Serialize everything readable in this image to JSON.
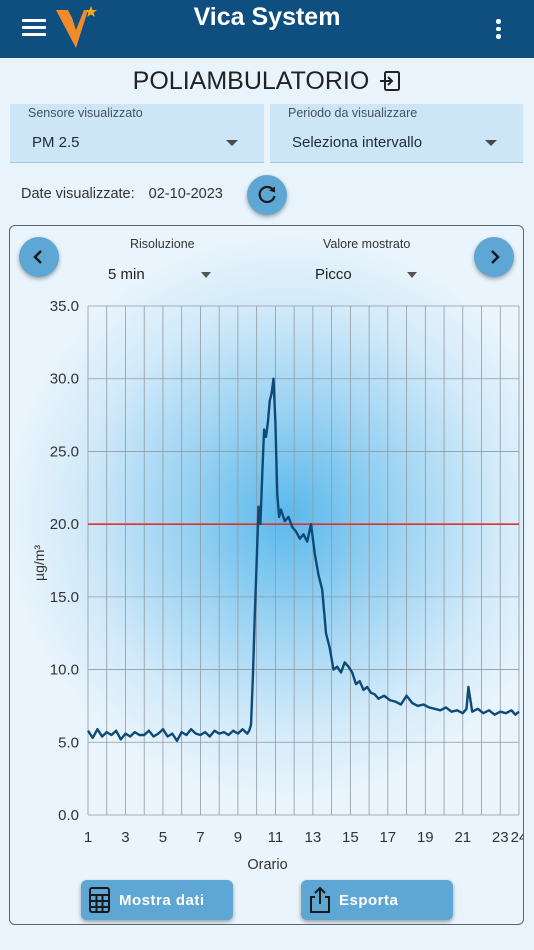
{
  "app": {
    "title": "Vica System"
  },
  "page": {
    "title": "POLIAMBULATORIO"
  },
  "filters": {
    "sensor": {
      "label": "Sensore visualizzato",
      "value": "PM 2.5"
    },
    "period": {
      "label": "Periodo da visualizzare",
      "value": "Seleziona intervallo"
    }
  },
  "dates": {
    "label": "Date visualizzate:",
    "value": "02-10-2023"
  },
  "chart_controls": {
    "resolution": {
      "label": "Risoluzione",
      "value": "5 min"
    },
    "shown_value": {
      "label": "Valore mostrato",
      "value": "Picco"
    }
  },
  "actions": {
    "show_data": "Mostra dati",
    "export": "Esporta"
  },
  "colors": {
    "appbar": "#0f4f7f",
    "accent": "#5ea6d4",
    "line": "#0d4a78",
    "threshold": "#e03030"
  },
  "chart_data": {
    "type": "line",
    "xlabel": "Orario",
    "ylabel": "µg/m³",
    "x_ticks": [
      "1",
      "3",
      "5",
      "7",
      "9",
      "11",
      "13",
      "15",
      "17",
      "19",
      "21",
      "23",
      "24"
    ],
    "y_ticks": [
      "0.0",
      "5.0",
      "10.0",
      "15.0",
      "20.0",
      "25.0",
      "30.0",
      "35.0"
    ],
    "xlim": [
      1,
      24
    ],
    "ylim": [
      0,
      35
    ],
    "grid": true,
    "threshold": 20,
    "series": [
      {
        "x": [
          1,
          1.25,
          1.5,
          1.75,
          2,
          2.25,
          2.5,
          2.75,
          3,
          3.25,
          3.5,
          3.75,
          4,
          4.25,
          4.5,
          4.75,
          5,
          5.25,
          5.5,
          5.75,
          6,
          6.25,
          6.5,
          6.75,
          7,
          7.25,
          7.5,
          7.75,
          8,
          8.25,
          8.5,
          8.75,
          9,
          9.25,
          9.5,
          9.6,
          9.7,
          9.8,
          9.9,
          10,
          10.1,
          10.2,
          10.3,
          10.4,
          10.5,
          10.6,
          10.7,
          10.8,
          10.9,
          11,
          11.1,
          11.2,
          11.3,
          11.5,
          11.7,
          11.9,
          12.1,
          12.3,
          12.5,
          12.7,
          12.9,
          13.1,
          13.3,
          13.5,
          13.7,
          13.9,
          14.1,
          14.3,
          14.5,
          14.7,
          14.9,
          15.1,
          15.3,
          15.5,
          15.7,
          15.9,
          16.1,
          16.3,
          16.5,
          16.8,
          17.1,
          17.4,
          17.7,
          18,
          18.3,
          18.6,
          18.9,
          19.2,
          19.5,
          19.8,
          20.1,
          20.4,
          20.7,
          21,
          21.2,
          21.3,
          21.5,
          21.8,
          22.1,
          22.4,
          22.7,
          23,
          23.3,
          23.6,
          23.8,
          24
        ],
        "y": [
          5.8,
          5.3,
          5.9,
          5.4,
          5.7,
          5.5,
          5.8,
          5.2,
          5.6,
          5.4,
          5.7,
          5.5,
          5.5,
          5.8,
          5.4,
          5.6,
          5.9,
          5.4,
          5.6,
          5.1,
          5.7,
          5.5,
          5.9,
          5.6,
          5.5,
          5.7,
          5.4,
          5.8,
          5.6,
          5.7,
          5.5,
          5.8,
          5.6,
          5.9,
          5.6,
          5.8,
          6.2,
          9.5,
          13.8,
          17.5,
          21.2,
          20.0,
          23.5,
          26.5,
          26.0,
          27.0,
          28.5,
          29.0,
          30.0,
          27.0,
          22.0,
          20.5,
          21.0,
          20.2,
          20.5,
          19.8,
          19.5,
          19.0,
          19.3,
          18.8,
          20.0,
          18.0,
          16.5,
          15.5,
          12.5,
          11.5,
          10.0,
          10.2,
          9.8,
          10.5,
          10.2,
          9.8,
          9.0,
          9.2,
          8.6,
          8.8,
          8.4,
          8.3,
          8.0,
          8.2,
          7.9,
          7.8,
          7.6,
          8.2,
          7.7,
          7.5,
          7.6,
          7.4,
          7.3,
          7.2,
          7.4,
          7.1,
          7.2,
          7.0,
          7.3,
          8.8,
          7.1,
          7.3,
          7.0,
          7.2,
          6.9,
          7.1,
          7.0,
          7.2,
          6.9,
          7.1
        ]
      }
    ]
  }
}
